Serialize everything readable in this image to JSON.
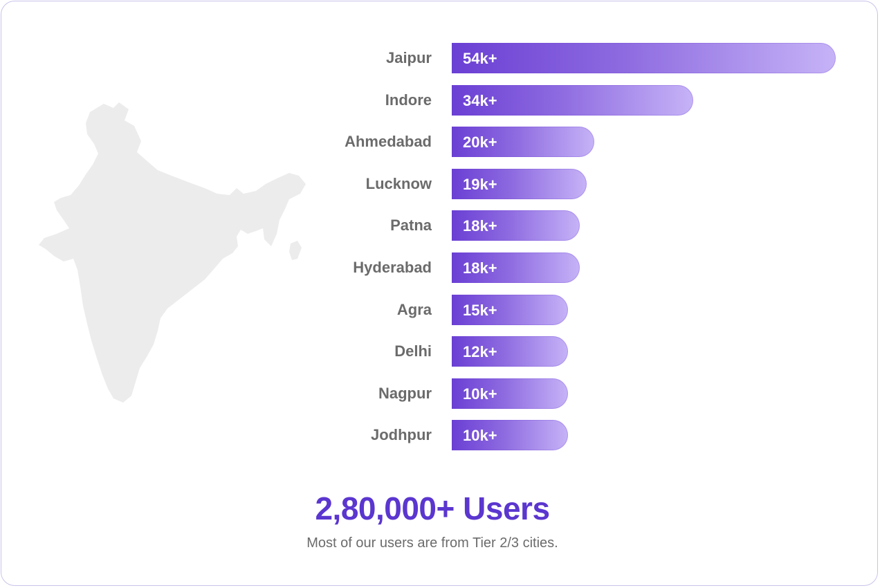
{
  "chart_data": {
    "type": "bar",
    "orientation": "horizontal",
    "categories": [
      "Jaipur",
      "Indore",
      "Ahmedabad",
      "Lucknow",
      "Patna",
      "Hyderabad",
      "Agra",
      "Delhi",
      "Nagpur",
      "Jodhpur"
    ],
    "values": [
      54,
      34,
      20,
      19,
      18,
      18,
      15,
      12,
      10,
      10
    ],
    "value_labels": [
      "54k+",
      "34k+",
      "20k+",
      "19k+",
      "18k+",
      "18k+",
      "15k+",
      "12k+",
      "10k+",
      "10k+"
    ],
    "unit": "k",
    "title": "",
    "xlabel": "",
    "ylabel": "",
    "grid": false,
    "colors": {
      "bar_start": "#6a3fd4",
      "bar_end": "#c6b3f7"
    }
  },
  "summary": {
    "total": "2,80,000+ Users",
    "subtitle": "Most of our users are from Tier 2/3 cities."
  },
  "map": {
    "icon": "india-map-icon",
    "color": "#ececec"
  },
  "colors": {
    "accent": "#5b36cf",
    "label": "#6b6b6b",
    "border": "#c9c2ea"
  }
}
